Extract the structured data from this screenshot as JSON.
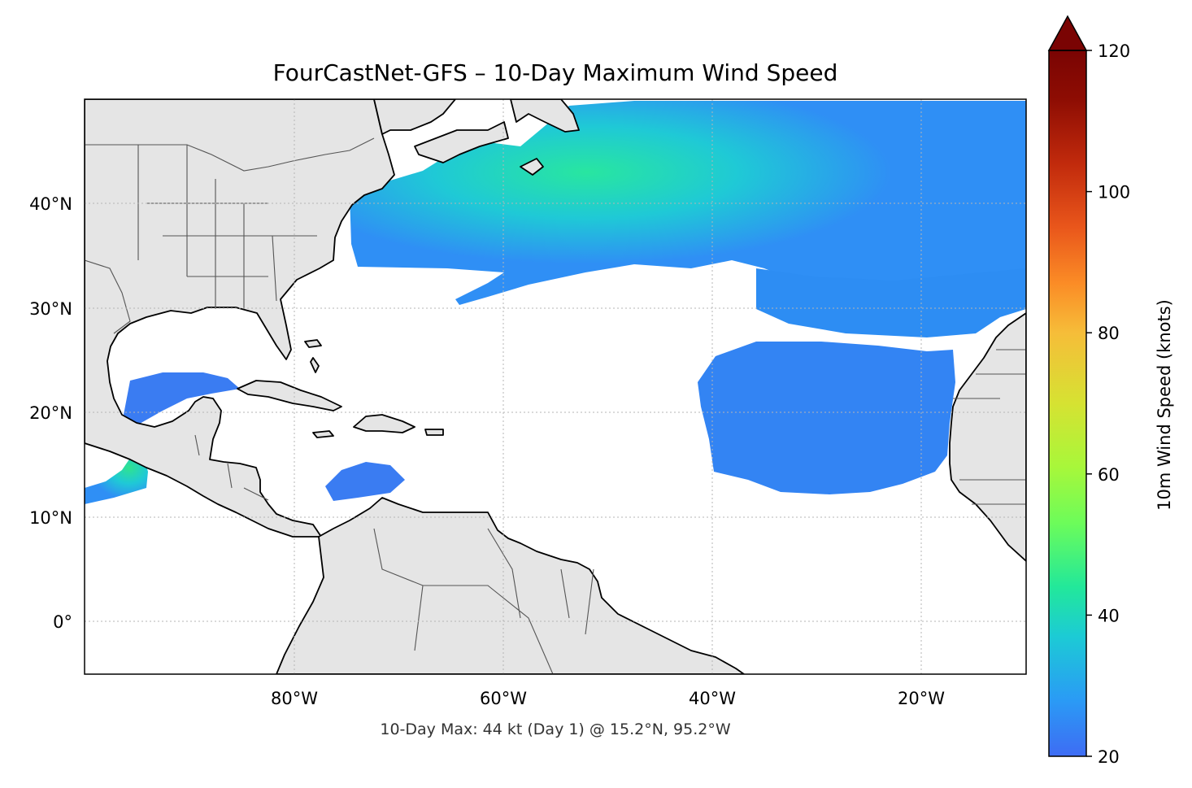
{
  "title": "FourCastNet-GFS – 10-Day Maximum Wind Speed",
  "caption": "10-Day Max: 44 kt (Day 1) @ 15.2°N, 95.2°W",
  "map": {
    "projection": "PlateCarree",
    "lon_range": [
      -100,
      -10
    ],
    "lat_range": [
      -5,
      50
    ],
    "lon_ticks": [
      {
        "value": -80,
        "label": "80°W"
      },
      {
        "value": -60,
        "label": "60°W"
      },
      {
        "value": -40,
        "label": "40°W"
      },
      {
        "value": -20,
        "label": "20°W"
      }
    ],
    "lat_ticks": [
      {
        "value": 40,
        "label": "40°N"
      },
      {
        "value": 30,
        "label": "30°N"
      },
      {
        "value": 20,
        "label": "20°N"
      },
      {
        "value": 10,
        "label": "10°N"
      },
      {
        "value": 0,
        "label": "0°"
      }
    ],
    "gridlines": true,
    "land_color": "#e5e5e5",
    "ocean_color": "#ffffff",
    "max_point": {
      "lat": 15.2,
      "lon": -95.2,
      "value_kt": 44,
      "day": 1
    }
  },
  "colorbar": {
    "label": "10m Wind Speed (knots)",
    "min": 20,
    "max": 120,
    "extend": "max",
    "colormap": "turbo",
    "ticks": [
      {
        "value": 20,
        "label": "20"
      },
      {
        "value": 40,
        "label": "40"
      },
      {
        "value": 60,
        "label": "60"
      },
      {
        "value": 80,
        "label": "80"
      },
      {
        "value": 100,
        "label": "100"
      },
      {
        "value": 120,
        "label": "120"
      }
    ],
    "colors": [
      "#3e6cf4",
      "#2a9bf5",
      "#1ccbd5",
      "#22e89a",
      "#6cfc5a",
      "#a8f73a",
      "#d6e232",
      "#f6bd39",
      "#fb8c26",
      "#e9561b",
      "#c12a0c",
      "#8e0d03",
      "#7a0403"
    ]
  }
}
